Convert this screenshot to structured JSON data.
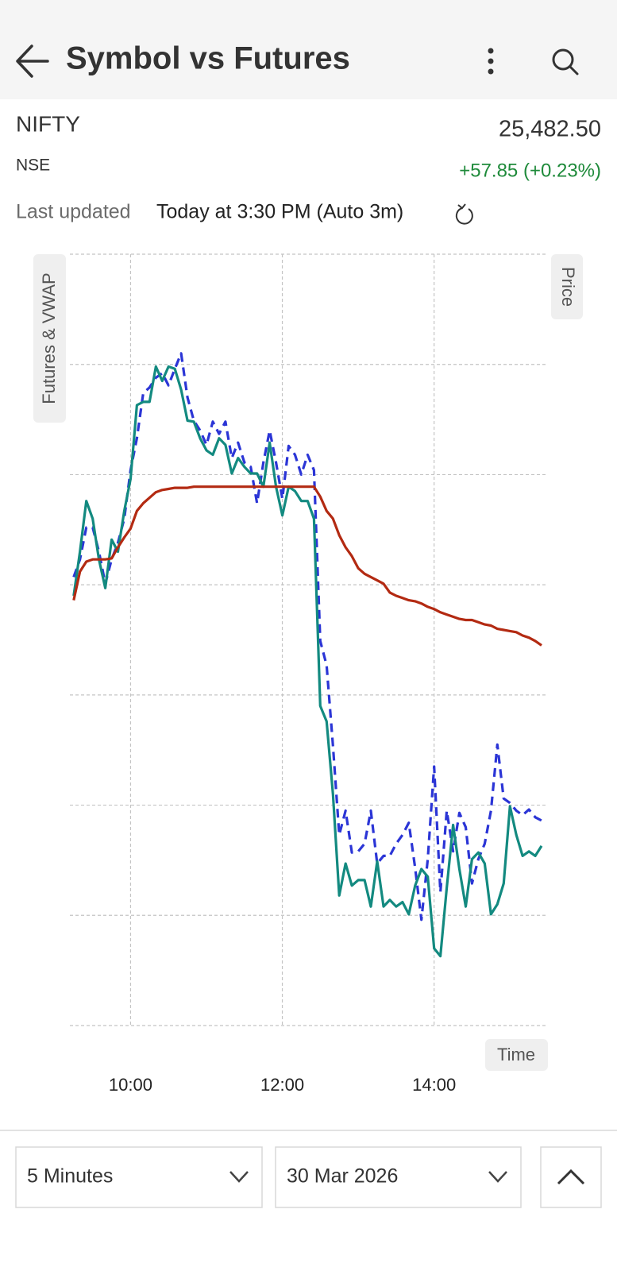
{
  "header": {
    "title": "Symbol vs Futures"
  },
  "quote": {
    "symbol": "NIFTY",
    "exchange": "NSE",
    "price": "25,482.50",
    "change": "+57.85 (+0.23%)"
  },
  "last_updated": {
    "label": "Last updated",
    "value": "Today at 3:30 PM (Auto 3m)"
  },
  "chart_data": {
    "type": "line",
    "y_label": "Futures & VWAP",
    "y2_label": "Price",
    "x_label": "Time",
    "x": [
      555,
      560,
      565,
      570,
      575,
      580,
      585,
      590,
      595,
      600,
      605,
      610,
      615,
      620,
      625,
      630,
      635,
      640,
      645,
      650,
      655,
      660,
      665,
      670,
      675,
      680,
      685,
      690,
      695,
      700,
      705,
      710,
      715,
      720,
      725,
      730,
      735,
      740,
      745,
      750,
      755,
      760,
      765,
      770,
      775,
      780,
      785,
      790,
      795,
      800,
      805,
      810,
      815,
      820,
      825,
      830,
      835,
      840,
      845,
      850,
      855,
      860,
      865,
      870,
      875,
      880,
      885,
      890,
      895,
      900,
      905,
      910,
      915,
      920,
      925
    ],
    "xlim": [
      552,
      930
    ],
    "xticks": [
      {
        "value": 600,
        "label": "10:00"
      },
      {
        "value": 720,
        "label": "12:00"
      },
      {
        "value": 840,
        "label": "14:00"
      }
    ],
    "ylim": [
      0,
      7
    ],
    "ygrid": [
      0,
      1,
      2,
      3,
      4,
      5,
      6,
      7
    ],
    "grid": true,
    "series": [
      {
        "color": "#2b35d6",
        "line_style": "dashed",
        "values": [
          4.07,
          4.23,
          4.52,
          4.52,
          4.3,
          4.01,
          4.23,
          4.38,
          4.6,
          5.04,
          5.33,
          5.74,
          5.79,
          5.88,
          5.92,
          5.81,
          5.96,
          6.1,
          5.7,
          5.49,
          5.4,
          5.27,
          5.48,
          5.37,
          5.48,
          5.15,
          5.29,
          5.11,
          5.07,
          4.74,
          5.11,
          5.4,
          5.11,
          4.78,
          5.26,
          5.18,
          5.0,
          5.18,
          5.04,
          3.49,
          3.27,
          2.54,
          1.73,
          1.95,
          1.57,
          1.58,
          1.65,
          1.95,
          1.47,
          1.54,
          1.54,
          1.65,
          1.73,
          1.84,
          1.43,
          0.96,
          1.51,
          2.35,
          1.21,
          1.95,
          1.58,
          1.93,
          1.8,
          1.29,
          1.51,
          1.65,
          1.95,
          2.55,
          2.06,
          2.02,
          1.95,
          1.91,
          1.96,
          1.89,
          1.86
        ]
      },
      {
        "color": "#138a80",
        "line_style": "solid",
        "values": [
          3.9,
          4.3,
          4.76,
          4.6,
          4.23,
          3.97,
          4.41,
          4.3,
          4.67,
          4.96,
          5.63,
          5.66,
          5.66,
          5.98,
          5.85,
          5.98,
          5.96,
          5.77,
          5.49,
          5.48,
          5.33,
          5.22,
          5.18,
          5.33,
          5.27,
          5.01,
          5.15,
          5.07,
          5.01,
          5.01,
          4.89,
          5.29,
          4.89,
          4.63,
          4.89,
          4.85,
          4.76,
          4.76,
          4.6,
          2.9,
          2.76,
          2.1,
          1.18,
          1.47,
          1.27,
          1.32,
          1.32,
          1.08,
          1.49,
          1.08,
          1.14,
          1.08,
          1.12,
          1.01,
          1.27,
          1.42,
          1.35,
          0.7,
          0.63,
          1.25,
          1.82,
          1.42,
          1.08,
          1.51,
          1.57,
          1.47,
          1.01,
          1.1,
          1.29,
          1.99,
          1.73,
          1.54,
          1.58,
          1.54,
          1.63
        ]
      },
      {
        "color": "#b32a12",
        "line_style": "solid",
        "values": [
          3.86,
          4.12,
          4.21,
          4.23,
          4.23,
          4.23,
          4.24,
          4.34,
          4.43,
          4.51,
          4.67,
          4.74,
          4.79,
          4.84,
          4.86,
          4.87,
          4.88,
          4.88,
          4.88,
          4.89,
          4.89,
          4.89,
          4.89,
          4.89,
          4.89,
          4.89,
          4.89,
          4.89,
          4.89,
          4.89,
          4.89,
          4.89,
          4.89,
          4.89,
          4.89,
          4.89,
          4.89,
          4.89,
          4.89,
          4.8,
          4.67,
          4.6,
          4.45,
          4.34,
          4.26,
          4.15,
          4.1,
          4.07,
          4.04,
          4.01,
          3.93,
          3.9,
          3.88,
          3.86,
          3.85,
          3.83,
          3.8,
          3.78,
          3.75,
          3.73,
          3.71,
          3.69,
          3.68,
          3.68,
          3.66,
          3.64,
          3.63,
          3.6,
          3.59,
          3.58,
          3.57,
          3.54,
          3.52,
          3.49,
          3.45
        ]
      }
    ]
  },
  "controls": {
    "interval": "5 Minutes",
    "date": "30 Mar 2026"
  }
}
